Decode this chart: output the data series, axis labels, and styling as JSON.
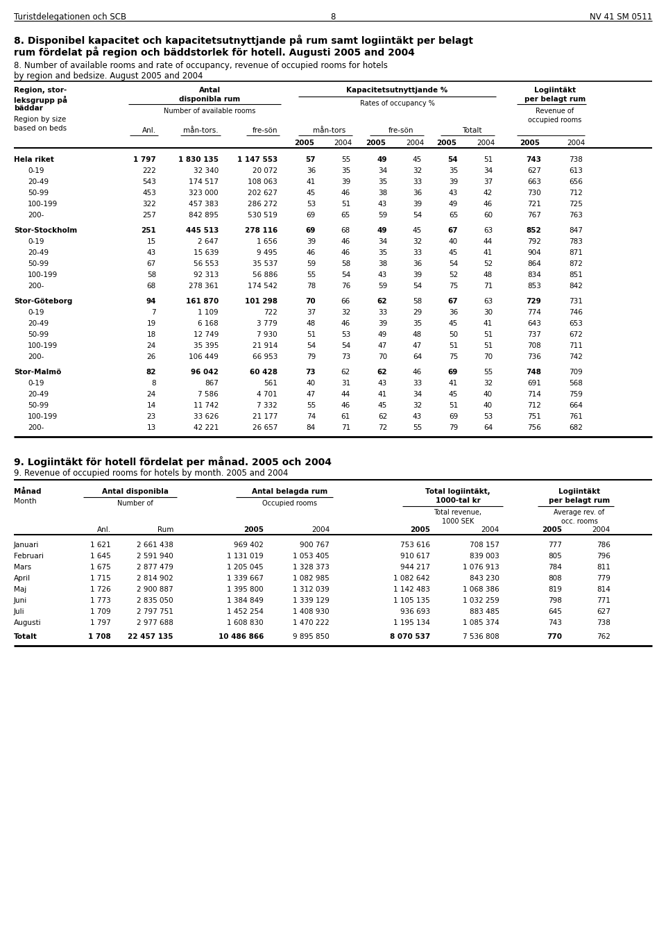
{
  "header_left": "Turistdelegationen och SCB",
  "header_center": "8",
  "header_right": "NV 41 SM 0511",
  "title_sv_line1": "8. Disponibel kapacitet och kapacitetsutnyttjande på rum samt logiintäkt per belagt",
  "title_sv_line2": "rum fördelat på region och bäddstorlek för hotell. Augusti 2005 and 2004",
  "title_en_line1": "8. Number of available rooms and rate of occupancy, revenue of occupied rooms for hotels",
  "title_en_line2": "by region and bedsize. August 2005 and 2004",
  "table1_data": [
    [
      "Hela riket",
      "1 797",
      "1 830 135",
      "1 147 553",
      "57",
      "55",
      "49",
      "45",
      "54",
      "51",
      "743",
      "738"
    ],
    [
      "0-19",
      "222",
      "32 340",
      "20 072",
      "36",
      "35",
      "34",
      "32",
      "35",
      "34",
      "627",
      "613"
    ],
    [
      "20-49",
      "543",
      "174 517",
      "108 063",
      "41",
      "39",
      "35",
      "33",
      "39",
      "37",
      "663",
      "656"
    ],
    [
      "50-99",
      "453",
      "323 000",
      "202 627",
      "45",
      "46",
      "38",
      "36",
      "43",
      "42",
      "730",
      "712"
    ],
    [
      "100-199",
      "322",
      "457 383",
      "286 272",
      "53",
      "51",
      "43",
      "39",
      "49",
      "46",
      "721",
      "725"
    ],
    [
      "200-",
      "257",
      "842 895",
      "530 519",
      "69",
      "65",
      "59",
      "54",
      "65",
      "60",
      "767",
      "763"
    ],
    [
      "Stor-Stockholm",
      "251",
      "445 513",
      "278 116",
      "69",
      "68",
      "49",
      "45",
      "67",
      "63",
      "852",
      "847"
    ],
    [
      "0-19",
      "15",
      "2 647",
      "1 656",
      "39",
      "46",
      "34",
      "32",
      "40",
      "44",
      "792",
      "783"
    ],
    [
      "20-49",
      "43",
      "15 639",
      "9 495",
      "46",
      "46",
      "35",
      "33",
      "45",
      "41",
      "904",
      "871"
    ],
    [
      "50-99",
      "67",
      "56 553",
      "35 537",
      "59",
      "58",
      "38",
      "36",
      "54",
      "52",
      "864",
      "872"
    ],
    [
      "100-199",
      "58",
      "92 313",
      "56 886",
      "55",
      "54",
      "43",
      "39",
      "52",
      "48",
      "834",
      "851"
    ],
    [
      "200-",
      "68",
      "278 361",
      "174 542",
      "78",
      "76",
      "59",
      "54",
      "75",
      "71",
      "853",
      "842"
    ],
    [
      "Stor-Göteborg",
      "94",
      "161 870",
      "101 298",
      "70",
      "66",
      "62",
      "58",
      "67",
      "63",
      "729",
      "731"
    ],
    [
      "0-19",
      "7",
      "1 109",
      "722",
      "37",
      "32",
      "33",
      "29",
      "36",
      "30",
      "774",
      "746"
    ],
    [
      "20-49",
      "19",
      "6 168",
      "3 779",
      "48",
      "46",
      "39",
      "35",
      "45",
      "41",
      "643",
      "653"
    ],
    [
      "50-99",
      "18",
      "12 749",
      "7 930",
      "51",
      "53",
      "49",
      "48",
      "50",
      "51",
      "737",
      "672"
    ],
    [
      "100-199",
      "24",
      "35 395",
      "21 914",
      "54",
      "54",
      "47",
      "47",
      "51",
      "51",
      "708",
      "711"
    ],
    [
      "200-",
      "26",
      "106 449",
      "66 953",
      "79",
      "73",
      "70",
      "64",
      "75",
      "70",
      "736",
      "742"
    ],
    [
      "Stor-Malmö",
      "82",
      "96 042",
      "60 428",
      "73",
      "62",
      "62",
      "46",
      "69",
      "55",
      "748",
      "709"
    ],
    [
      "0-19",
      "8",
      "867",
      "561",
      "40",
      "31",
      "43",
      "33",
      "41",
      "32",
      "691",
      "568"
    ],
    [
      "20-49",
      "24",
      "7 586",
      "4 701",
      "47",
      "44",
      "41",
      "34",
      "45",
      "40",
      "714",
      "759"
    ],
    [
      "50-99",
      "14",
      "11 742",
      "7 332",
      "55",
      "46",
      "45",
      "32",
      "51",
      "40",
      "712",
      "664"
    ],
    [
      "100-199",
      "23",
      "33 626",
      "21 177",
      "74",
      "61",
      "62",
      "43",
      "69",
      "53",
      "751",
      "761"
    ],
    [
      "200-",
      "13",
      "42 221",
      "26 657",
      "84",
      "71",
      "72",
      "55",
      "79",
      "64",
      "756",
      "682"
    ]
  ],
  "bold_rows": [
    0,
    6,
    12,
    18
  ],
  "title2_sv": "9. Logiintäkt för hotell fördelat per månad. 2005 och 2004",
  "title2_en": "9. Revenue of occupied rooms for hotels by month. 2005 and 2004",
  "table2_data": [
    [
      "Januari",
      "1 621",
      "2 661 438",
      "969 402",
      "900 767",
      "753 616",
      "708 157",
      "777",
      "786"
    ],
    [
      "Februari",
      "1 645",
      "2 591 940",
      "1 131 019",
      "1 053 405",
      "910 617",
      "839 003",
      "805",
      "796"
    ],
    [
      "Mars",
      "1 675",
      "2 877 479",
      "1 205 045",
      "1 328 373",
      "944 217",
      "1 076 913",
      "784",
      "811"
    ],
    [
      "April",
      "1 715",
      "2 814 902",
      "1 339 667",
      "1 082 985",
      "1 082 642",
      "843 230",
      "808",
      "779"
    ],
    [
      "Maj",
      "1 726",
      "2 900 887",
      "1 395 800",
      "1 312 039",
      "1 142 483",
      "1 068 386",
      "819",
      "814"
    ],
    [
      "Juni",
      "1 773",
      "2 835 050",
      "1 384 849",
      "1 339 129",
      "1 105 135",
      "1 032 259",
      "798",
      "771"
    ],
    [
      "Juli",
      "1 709",
      "2 797 751",
      "1 452 254",
      "1 408 930",
      "936 693",
      "883 485",
      "645",
      "627"
    ],
    [
      "Augusti",
      "1 797",
      "2 977 688",
      "1 608 830",
      "1 470 222",
      "1 195 134",
      "1 085 374",
      "743",
      "738"
    ],
    [
      "Totalt",
      "1 708",
      "22 457 135",
      "10 486 866",
      "9 895 850",
      "8 070 537",
      "7 536 808",
      "770",
      "762"
    ]
  ],
  "bold_rows2": [
    8
  ]
}
